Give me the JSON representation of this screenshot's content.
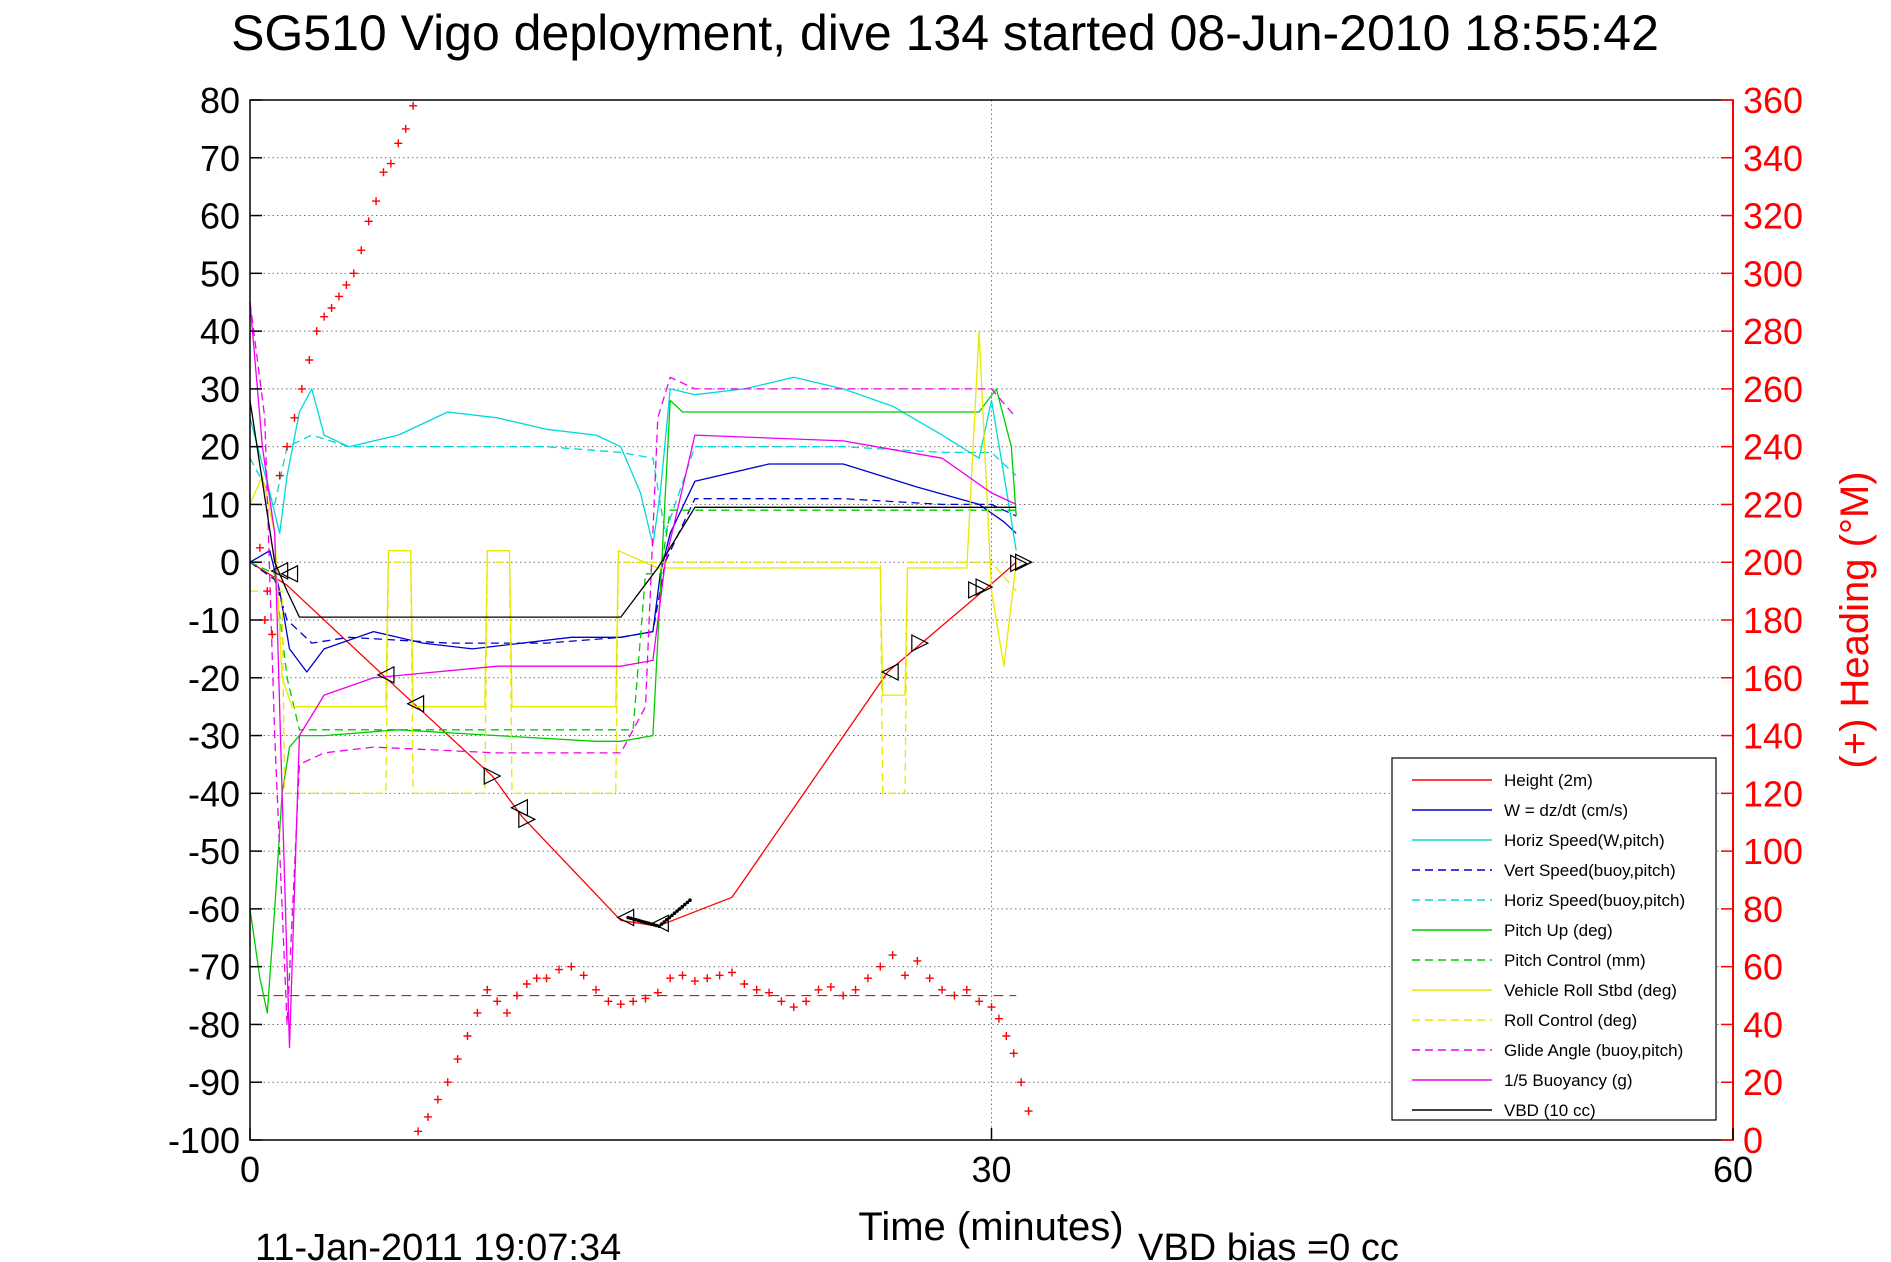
{
  "chart_data": {
    "type": "line",
    "title": "SG510 Vigo deployment, dive 134 started 08-Jun-2010 18:55:42",
    "xlabel": "Time (minutes)",
    "y2label": "(+) Heading (°M)",
    "footer_left": "11-Jan-2011 19:07:34",
    "footer_right": "VBD bias =0 cc",
    "xlim": [
      0,
      60
    ],
    "ylim": [
      -100,
      80
    ],
    "y2lim": [
      0,
      360
    ],
    "xticks": [
      "0",
      "30",
      "60"
    ],
    "yticks": [
      "80",
      "70",
      "60",
      "50",
      "40",
      "30",
      "20",
      "10",
      "0",
      "-10",
      "-20",
      "-30",
      "-40",
      "-50",
      "-60",
      "-70",
      "-80",
      "-90",
      "-100"
    ],
    "y2ticks": [
      "360",
      "340",
      "320",
      "300",
      "280",
      "260",
      "240",
      "220",
      "200",
      "180",
      "160",
      "140",
      "120",
      "100",
      "80",
      "60",
      "40",
      "20",
      "0"
    ],
    "grid": true,
    "legend_position": "bottom-right",
    "legend": [
      {
        "label": "Height (2m)",
        "color": "#ff0000",
        "dash": ""
      },
      {
        "label": "W = dz/dt (cm/s)",
        "color": "#0000cc",
        "dash": ""
      },
      {
        "label": "Horiz Speed(W,pitch)",
        "color": "#00d8d8",
        "dash": ""
      },
      {
        "label": "Vert Speed(buoy,pitch)",
        "color": "#0000cc",
        "dash": "8,5"
      },
      {
        "label": "Horiz Speed(buoy,pitch)",
        "color": "#00d8d8",
        "dash": "8,5"
      },
      {
        "label": "Pitch Up (deg)",
        "color": "#00cc00",
        "dash": ""
      },
      {
        "label": "Pitch Control (mm)",
        "color": "#00cc00",
        "dash": "8,5"
      },
      {
        "label": "Vehicle Roll Stbd (deg)",
        "color": "#e8e800",
        "dash": ""
      },
      {
        "label": "Roll Control (deg)",
        "color": "#e8e800",
        "dash": "8,5"
      },
      {
        "label": "Glide Angle (buoy,pitch)",
        "color": "#ee00ee",
        "dash": "8,5"
      },
      {
        "label": "1/5 Buoyancy (g)",
        "color": "#ee00ee",
        "dash": ""
      },
      {
        "label": "VBD (10 cc)",
        "color": "#000000",
        "dash": ""
      }
    ],
    "series": [
      {
        "name": "Height (2m)",
        "color": "#ff0000",
        "dash": "",
        "x": [
          0,
          1.5,
          5.5,
          9.8,
          11,
          15,
          16.5,
          19.5,
          25.8,
          30.2,
          31
        ],
        "y": [
          0,
          -4,
          -20,
          -37,
          -44,
          -62,
          -63,
          -58,
          -19,
          -3,
          0
        ]
      },
      {
        "name": "W = dz/dt (cm/s)",
        "color": "#0000cc",
        "dash": "",
        "x": [
          0,
          0.8,
          1.2,
          1.6,
          2.3,
          3,
          5,
          7,
          9,
          11,
          13,
          15,
          16.3,
          16.6,
          17,
          18,
          21,
          24,
          27,
          29.5,
          30.5,
          31
        ],
        "y": [
          0,
          2,
          -5,
          -15,
          -19,
          -15,
          -12,
          -14,
          -15,
          -14,
          -13,
          -13,
          -12,
          -2,
          5,
          14,
          17,
          17,
          13,
          10,
          7,
          5
        ]
      },
      {
        "name": "Horiz Speed(W,pitch)",
        "color": "#00d8d8",
        "dash": "",
        "x": [
          0,
          0.8,
          1.2,
          1.5,
          2,
          2.5,
          3,
          4,
          6,
          8,
          10,
          12,
          14,
          15,
          15.8,
          16.3,
          16.6,
          17,
          18,
          20,
          22,
          24,
          26,
          28,
          29.5,
          30,
          30.7,
          31
        ],
        "y": [
          25,
          12,
          5,
          15,
          26,
          30,
          22,
          20,
          22,
          26,
          25,
          23,
          22,
          20,
          12,
          3,
          12,
          30,
          29,
          30,
          32,
          30,
          27,
          22,
          18,
          28,
          10,
          2
        ]
      },
      {
        "name": "Vert Speed(buoy,pitch)",
        "color": "#0000cc",
        "dash": "8,5",
        "x": [
          0,
          1,
          1.5,
          2.5,
          4,
          8,
          12,
          15,
          16.3,
          16.8,
          18,
          24,
          28,
          30,
          31
        ],
        "y": [
          0,
          -3,
          -10,
          -14,
          -13,
          -14,
          -14,
          -13,
          -12,
          0,
          11,
          11,
          10,
          10,
          8
        ]
      },
      {
        "name": "Horiz Speed(buoy,pitch)",
        "color": "#00d8d8",
        "dash": "8,5",
        "x": [
          0,
          1,
          1.5,
          2.5,
          4,
          8,
          12,
          15,
          16.3,
          16.8,
          18,
          24,
          28,
          30,
          31
        ],
        "y": [
          18,
          10,
          20,
          22,
          20,
          20,
          20,
          19,
          18,
          5,
          20,
          20,
          19,
          19,
          15
        ]
      },
      {
        "name": "Pitch Up (deg)",
        "color": "#00cc00",
        "dash": "",
        "x": [
          0,
          0.4,
          0.7,
          1,
          1.3,
          1.6,
          2,
          3,
          6,
          10,
          14,
          15,
          16.3,
          16.6,
          17,
          17.5,
          19,
          24,
          28,
          29.5,
          30.2,
          30.8,
          31
        ],
        "y": [
          -60,
          -72,
          -78,
          -60,
          -40,
          -32,
          -30,
          -30,
          -29,
          -30,
          -31,
          -31,
          -30,
          -5,
          28,
          26,
          26,
          26,
          26,
          26,
          30,
          20,
          8
        ]
      },
      {
        "name": "Pitch Control (mm)",
        "color": "#00cc00",
        "dash": "8,5",
        "x": [
          0,
          1,
          1.5,
          2,
          15.5,
          16,
          16.6,
          17,
          18,
          29,
          31
        ],
        "y": [
          0,
          -2,
          -20,
          -29,
          -29,
          -2,
          -2,
          9,
          9,
          9,
          9
        ]
      },
      {
        "name": "Vehicle Roll Stbd (deg)",
        "color": "#e8e800",
        "dash": "",
        "x": [
          0,
          0.5,
          1,
          1.3,
          1.7,
          2.5,
          5.5,
          5.6,
          6.5,
          6.6,
          9.5,
          9.6,
          10.5,
          10.6,
          14.8,
          14.9,
          16.5,
          19,
          23,
          25.5,
          25.6,
          26.5,
          26.6,
          29,
          29.5,
          30,
          30.5,
          31
        ],
        "y": [
          10,
          15,
          5,
          -20,
          -25,
          -25,
          -25,
          2,
          2,
          -25,
          -25,
          2,
          2,
          -25,
          -25,
          2,
          -1,
          -1,
          -1,
          -1,
          -23,
          -23,
          -1,
          -1,
          40,
          -5,
          -18,
          0
        ]
      },
      {
        "name": "Roll Control (deg)",
        "color": "#e8e800",
        "dash": "8,5",
        "x": [
          0,
          1.3,
          1.4,
          5.5,
          5.6,
          6.5,
          6.6,
          9.5,
          9.6,
          10.5,
          10.6,
          14.8,
          14.9,
          16.5,
          25.5,
          25.6,
          26.5,
          26.6,
          30,
          31
        ],
        "y": [
          -5,
          -5,
          -40,
          -40,
          0,
          0,
          -40,
          -40,
          0,
          0,
          -40,
          -40,
          0,
          0,
          0,
          -40,
          -40,
          0,
          0,
          -5
        ]
      },
      {
        "name": "Glide Angle (buoy,pitch)",
        "color": "#ee00ee",
        "dash": "8,5",
        "x": [
          0,
          0.6,
          1,
          1.5,
          2,
          3,
          5,
          10,
          15,
          16,
          16.5,
          17,
          18,
          29,
          30,
          31
        ],
        "y": [
          45,
          25,
          -30,
          -80,
          -35,
          -33,
          -32,
          -33,
          -33,
          -25,
          25,
          32,
          30,
          30,
          30,
          25
        ]
      },
      {
        "name": "1/5 Buoyancy (g)",
        "color": "#ee00ee",
        "dash": "",
        "x": [
          0,
          0.5,
          1,
          1.3,
          1.6,
          2,
          3,
          5,
          10,
          15,
          16.3,
          16.8,
          18,
          24,
          28,
          30,
          31
        ],
        "y": [
          45,
          20,
          5,
          -40,
          -84,
          -30,
          -23,
          -20,
          -18,
          -18,
          -17,
          0,
          22,
          21,
          18,
          12,
          10
        ]
      },
      {
        "name": "VBD (10 cc)",
        "color": "#000000",
        "dash": "",
        "x": [
          0,
          1,
          1.5,
          2,
          15,
          16.5,
          18,
          30,
          31
        ],
        "y": [
          28,
          0,
          -5,
          -9.5,
          -9.5,
          -1,
          9.5,
          9.5,
          9.5
        ]
      }
    ],
    "height_markers": [
      {
        "x": 1.2,
        "y": -1.5,
        "dir": "left"
      },
      {
        "x": 1.6,
        "y": -2.0,
        "dir": "left"
      },
      {
        "x": 5.5,
        "y": -19.5,
        "dir": "left"
      },
      {
        "x": 6.7,
        "y": -24.5,
        "dir": "left"
      },
      {
        "x": 9.8,
        "y": -37,
        "dir": "right"
      },
      {
        "x": 10.9,
        "y": -42.5,
        "dir": "left"
      },
      {
        "x": 11.2,
        "y": -44.5,
        "dir": "right"
      },
      {
        "x": 15.2,
        "y": -61.5,
        "dir": "left"
      },
      {
        "x": 16.6,
        "y": -62.5,
        "dir": "left"
      },
      {
        "x": 25.9,
        "y": -19,
        "dir": "left"
      },
      {
        "x": 27.1,
        "y": -14,
        "dir": "right"
      },
      {
        "x": 29.4,
        "y": -4.8,
        "dir": "right"
      },
      {
        "x": 29.7,
        "y": -4.3,
        "dir": "right"
      },
      {
        "x": 31.1,
        "y": -0.2,
        "dir": "right"
      },
      {
        "x": 31.3,
        "y": 0,
        "dir": "right"
      }
    ],
    "bottom_points": {
      "x_start": 15.3,
      "x_end": 17.8,
      "y_start": -61.5,
      "y_mid": -63,
      "y_end": -58.5
    },
    "heading_reference": 50,
    "heading": {
      "upper": {
        "x": [
          0.7,
          1.2,
          1.5,
          1.8,
          2.1,
          2.4,
          2.7,
          3.0,
          3.3,
          3.6,
          3.9,
          4.2,
          4.5,
          4.8,
          5.1,
          5.4,
          5.7,
          6.0,
          6.3,
          6.6
        ],
        "y": [
          190,
          230,
          240,
          250,
          260,
          270,
          280,
          285,
          288,
          292,
          296,
          300,
          308,
          318,
          325,
          335,
          338,
          345,
          350,
          358
        ]
      },
      "lower": {
        "x": [
          0.4,
          0.6,
          0.9,
          6.8,
          7.2,
          7.6,
          8.0,
          8.4,
          8.8,
          9.2,
          9.6,
          10.0,
          10.4,
          10.8,
          11.2,
          11.6,
          12.0,
          12.5,
          13.0,
          13.5,
          14.0,
          14.5,
          15.0,
          15.5,
          16.0,
          16.5,
          17.0,
          17.5,
          18.0,
          18.5,
          19.0,
          19.5,
          20.0,
          20.5,
          21.0,
          21.5,
          22.0,
          22.5,
          23.0,
          23.5,
          24.0,
          24.5,
          25.0,
          25.5,
          26.0,
          26.5,
          27.0,
          27.5,
          28.0,
          28.5,
          29.0,
          29.5,
          30.0,
          30.3,
          30.6,
          30.9,
          31.2,
          31.5
        ],
        "y": [
          205,
          180,
          175,
          3,
          8,
          14,
          20,
          28,
          36,
          44,
          52,
          48,
          44,
          50,
          54,
          56,
          56,
          59,
          60,
          57,
          52,
          48,
          47,
          48,
          49,
          51,
          56,
          57,
          55,
          56,
          57,
          58,
          54,
          52,
          51,
          48,
          46,
          48,
          52,
          53,
          50,
          52,
          56,
          60,
          64,
          57,
          62,
          56,
          52,
          50,
          52,
          48,
          46,
          42,
          36,
          30,
          20,
          10
        ]
      }
    }
  }
}
